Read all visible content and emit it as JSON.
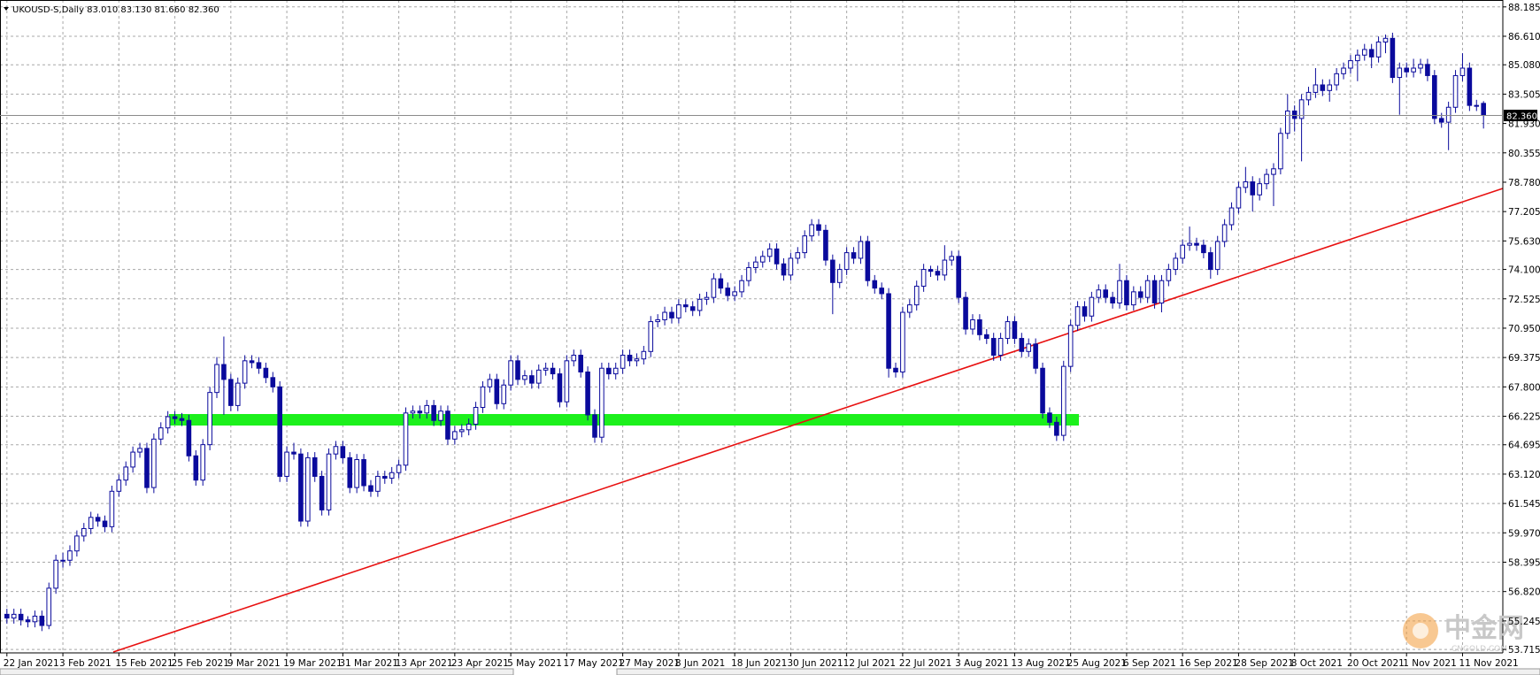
{
  "chart_data": {
    "type": "candlestick",
    "title": "UKOUSD-S,Daily  83.010 83.130 81.660 82.360",
    "color": "#0a0a9c",
    "up_fill": "#ffffff",
    "grid": true,
    "ylim": [
      53.53,
      88.555
    ],
    "yticks": [
      88.185,
      {
        "value": 86.61,
        "label": "86.610"
      },
      {
        "value": 85.08,
        "label": "85.080"
      },
      83.505,
      {
        "value": 81.93,
        "label": "81.930"
      },
      80.355,
      {
        "value": 78.78,
        "label": "78.780"
      },
      77.205,
      {
        "value": 75.63,
        "label": "75.630"
      },
      {
        "value": 74.1,
        "label": "74.100"
      },
      72.525,
      {
        "value": 70.95,
        "label": "70.950"
      },
      69.375,
      {
        "value": 67.8,
        "label": "67.800"
      },
      66.225,
      64.695,
      {
        "value": 63.12,
        "label": "63.120"
      },
      61.545,
      {
        "value": 59.97,
        "label": "59.970"
      },
      58.395,
      {
        "value": 56.82,
        "label": "56.820"
      },
      55.245,
      53.715
    ],
    "last_price": {
      "value": 82.36,
      "label": "82.360"
    },
    "watermark": "中金网",
    "watermark_sub": "CNGOLD.COM",
    "categories": [
      "22 Jan 2021",
      null,
      null,
      null,
      null,
      null,
      null,
      null,
      "3 Feb 2021",
      null,
      null,
      null,
      null,
      null,
      null,
      null,
      "15 Feb 2021",
      null,
      null,
      null,
      null,
      null,
      null,
      null,
      "25 Feb 2021",
      null,
      null,
      null,
      null,
      null,
      null,
      null,
      "9 Mar 2021",
      null,
      null,
      null,
      null,
      null,
      null,
      null,
      "19 Mar 2021",
      null,
      null,
      null,
      null,
      null,
      null,
      null,
      "31 Mar 2021",
      null,
      null,
      null,
      null,
      null,
      null,
      null,
      "13 Apr 2021",
      null,
      null,
      null,
      null,
      null,
      null,
      null,
      "23 Apr 2021",
      null,
      null,
      null,
      null,
      null,
      null,
      null,
      "5 May 2021",
      null,
      null,
      null,
      null,
      null,
      null,
      null,
      "17 May 2021",
      null,
      null,
      null,
      null,
      null,
      null,
      null,
      "27 May 2021",
      null,
      null,
      null,
      null,
      null,
      null,
      null,
      "8 Jun 2021",
      null,
      null,
      null,
      null,
      null,
      null,
      null,
      "18 Jun 2021",
      null,
      null,
      null,
      null,
      null,
      null,
      null,
      "30 Jun 2021",
      null,
      null,
      null,
      null,
      null,
      null,
      null,
      "12 Jul 2021",
      null,
      null,
      null,
      null,
      null,
      null,
      null,
      "22 Jul 2021",
      null,
      null,
      null,
      null,
      null,
      null,
      null,
      "3 Aug 2021",
      null,
      null,
      null,
      null,
      null,
      null,
      null,
      "13 Aug 2021",
      null,
      null,
      null,
      null,
      null,
      null,
      null,
      "25 Aug 2021",
      null,
      null,
      null,
      null,
      null,
      null,
      null,
      "6 Sep 2021",
      null,
      null,
      null,
      null,
      null,
      null,
      null,
      "16 Sep 2021",
      null,
      null,
      null,
      null,
      null,
      null,
      null,
      "28 Sep 2021",
      null,
      null,
      null,
      null,
      null,
      null,
      null,
      "8 Oct 2021",
      null,
      null,
      null,
      null,
      null,
      null,
      null,
      "20 Oct 2021",
      null,
      null,
      null,
      null,
      null,
      null,
      null,
      "1 Nov 2021",
      null,
      null,
      null,
      null,
      null,
      null,
      null,
      "11 Nov 2021",
      null,
      null,
      null
    ],
    "ohlc": [
      [
        55.6,
        55.9,
        55.1,
        55.4
      ],
      [
        55.4,
        55.9,
        55.1,
        55.6
      ],
      [
        55.6,
        55.9,
        55.0,
        55.3
      ],
      [
        55.3,
        55.5,
        54.9,
        55.2
      ],
      [
        55.2,
        55.8,
        54.9,
        55.5
      ],
      [
        55.5,
        55.8,
        54.7,
        55.0
      ],
      [
        55.0,
        57.3,
        54.8,
        57.0
      ],
      [
        57.0,
        58.8,
        56.7,
        58.5
      ],
      [
        58.5,
        58.9,
        58.1,
        58.5
      ],
      [
        58.5,
        59.3,
        58.2,
        59.0
      ],
      [
        59.0,
        60.1,
        58.7,
        59.8
      ],
      [
        59.8,
        60.5,
        59.5,
        60.2
      ],
      [
        60.2,
        61.1,
        59.9,
        60.8
      ],
      [
        60.8,
        61.0,
        60.3,
        60.6
      ],
      [
        60.6,
        60.9,
        60.0,
        60.3
      ],
      [
        60.3,
        62.5,
        60.0,
        62.2
      ],
      [
        62.2,
        63.1,
        61.9,
        62.8
      ],
      [
        62.8,
        63.8,
        62.5,
        63.5
      ],
      [
        63.5,
        64.6,
        63.2,
        64.3
      ],
      [
        64.3,
        64.8,
        64.0,
        64.5
      ],
      [
        64.5,
        64.8,
        62.1,
        62.4
      ],
      [
        62.4,
        65.3,
        62.1,
        65.0
      ],
      [
        65.0,
        65.9,
        64.7,
        65.6
      ],
      [
        65.6,
        66.5,
        65.3,
        66.2
      ],
      [
        66.2,
        66.5,
        65.8,
        66.1
      ],
      [
        66.1,
        66.4,
        65.7,
        66.0
      ],
      [
        66.0,
        66.3,
        63.8,
        64.1
      ],
      [
        64.1,
        64.4,
        62.5,
        62.8
      ],
      [
        62.8,
        65.0,
        62.5,
        64.7
      ],
      [
        64.7,
        67.8,
        64.4,
        67.5
      ],
      [
        67.5,
        69.4,
        67.2,
        69.0
      ],
      [
        69.0,
        70.5,
        66.3,
        68.2
      ],
      [
        68.2,
        68.5,
        66.5,
        66.8
      ],
      [
        66.8,
        68.3,
        66.5,
        68.0
      ],
      [
        68.0,
        69.5,
        67.7,
        69.2
      ],
      [
        69.2,
        69.5,
        68.8,
        69.1
      ],
      [
        69.1,
        69.4,
        68.5,
        68.8
      ],
      [
        68.8,
        69.1,
        68.0,
        68.3
      ],
      [
        68.3,
        68.6,
        67.5,
        67.8
      ],
      [
        67.8,
        68.1,
        62.7,
        63.0
      ],
      [
        63.0,
        64.6,
        62.7,
        64.3
      ],
      [
        64.3,
        64.8,
        63.9,
        64.2
      ],
      [
        64.2,
        64.5,
        60.3,
        60.6
      ],
      [
        60.6,
        64.3,
        60.3,
        64.0
      ],
      [
        64.0,
        64.3,
        62.7,
        63.0
      ],
      [
        63.0,
        63.3,
        60.9,
        61.2
      ],
      [
        61.2,
        64.5,
        60.9,
        64.2
      ],
      [
        64.2,
        64.9,
        63.9,
        64.6
      ],
      [
        64.6,
        64.9,
        63.7,
        64.0
      ],
      [
        64.0,
        64.3,
        62.1,
        62.4
      ],
      [
        62.4,
        64.2,
        62.1,
        63.9
      ],
      [
        63.9,
        64.2,
        62.2,
        62.5
      ],
      [
        62.5,
        62.8,
        61.9,
        62.2
      ],
      [
        62.2,
        63.3,
        61.9,
        63.0
      ],
      [
        63.0,
        63.3,
        62.6,
        62.9
      ],
      [
        62.9,
        63.5,
        62.6,
        63.2
      ],
      [
        63.2,
        63.9,
        62.9,
        63.6
      ],
      [
        63.6,
        66.7,
        63.3,
        66.4
      ],
      [
        66.4,
        66.8,
        66.1,
        66.5
      ],
      [
        66.5,
        66.8,
        66.1,
        66.4
      ],
      [
        66.4,
        67.1,
        66.1,
        66.8
      ],
      [
        66.8,
        67.1,
        65.7,
        66.0
      ],
      [
        66.0,
        66.8,
        65.7,
        66.5
      ],
      [
        66.5,
        66.8,
        64.7,
        65.0
      ],
      [
        65.0,
        65.7,
        64.7,
        65.4
      ],
      [
        65.4,
        65.8,
        65.1,
        65.5
      ],
      [
        65.5,
        66.1,
        65.2,
        65.8
      ],
      [
        65.8,
        67.0,
        65.5,
        66.7
      ],
      [
        66.7,
        68.1,
        66.4,
        67.8
      ],
      [
        67.8,
        68.5,
        67.5,
        68.2
      ],
      [
        68.2,
        68.5,
        66.6,
        66.9
      ],
      [
        66.9,
        68.2,
        66.6,
        67.9
      ],
      [
        67.9,
        69.5,
        67.6,
        69.2
      ],
      [
        69.2,
        69.5,
        67.9,
        68.2
      ],
      [
        68.2,
        68.7,
        67.9,
        68.4
      ],
      [
        68.4,
        68.7,
        67.7,
        68.0
      ],
      [
        68.0,
        69.0,
        67.7,
        68.7
      ],
      [
        68.7,
        69.1,
        68.4,
        68.8
      ],
      [
        68.8,
        69.1,
        68.2,
        68.5
      ],
      [
        68.5,
        68.8,
        66.7,
        67.0
      ],
      [
        67.0,
        69.5,
        66.7,
        69.2
      ],
      [
        69.2,
        69.8,
        68.9,
        69.5
      ],
      [
        69.5,
        69.8,
        68.3,
        68.6
      ],
      [
        68.6,
        68.9,
        66.0,
        66.3
      ],
      [
        66.3,
        66.6,
        64.8,
        65.1
      ],
      [
        65.1,
        69.1,
        64.8,
        68.8
      ],
      [
        68.8,
        69.1,
        68.2,
        68.5
      ],
      [
        68.5,
        69.1,
        68.2,
        68.8
      ],
      [
        68.8,
        69.8,
        68.5,
        69.5
      ],
      [
        69.5,
        69.8,
        68.9,
        69.2
      ],
      [
        69.2,
        69.6,
        68.9,
        69.3
      ],
      [
        69.3,
        70.0,
        69.0,
        69.7
      ],
      [
        69.7,
        71.6,
        69.4,
        71.3
      ],
      [
        71.3,
        71.7,
        71.0,
        71.4
      ],
      [
        71.4,
        72.1,
        71.1,
        71.8
      ],
      [
        71.8,
        72.1,
        71.2,
        71.5
      ],
      [
        71.5,
        72.5,
        71.2,
        72.2
      ],
      [
        72.2,
        72.5,
        71.8,
        72.1
      ],
      [
        72.1,
        72.4,
        71.6,
        71.9
      ],
      [
        71.9,
        72.8,
        71.6,
        72.5
      ],
      [
        72.5,
        72.9,
        72.2,
        72.6
      ],
      [
        72.6,
        73.9,
        72.3,
        73.6
      ],
      [
        73.6,
        73.9,
        72.8,
        73.1
      ],
      [
        73.1,
        73.4,
        72.4,
        72.7
      ],
      [
        72.7,
        73.2,
        72.4,
        72.9
      ],
      [
        72.9,
        73.8,
        72.6,
        73.5
      ],
      [
        73.5,
        74.5,
        73.2,
        74.2
      ],
      [
        74.2,
        74.8,
        73.9,
        74.5
      ],
      [
        74.5,
        75.1,
        74.2,
        74.8
      ],
      [
        74.8,
        75.5,
        74.5,
        75.2
      ],
      [
        75.2,
        75.5,
        74.1,
        74.4
      ],
      [
        74.4,
        74.7,
        73.5,
        73.8
      ],
      [
        73.8,
        75.0,
        73.5,
        74.7
      ],
      [
        74.7,
        75.3,
        74.4,
        75.0
      ],
      [
        75.0,
        76.2,
        74.7,
        75.9
      ],
      [
        75.9,
        76.8,
        75.6,
        76.5
      ],
      [
        76.5,
        76.8,
        75.9,
        76.2
      ],
      [
        76.2,
        76.5,
        74.3,
        74.6
      ],
      [
        74.6,
        74.9,
        71.7,
        73.4
      ],
      [
        73.4,
        74.4,
        73.1,
        74.1
      ],
      [
        74.1,
        75.3,
        73.8,
        75.0
      ],
      [
        75.0,
        75.3,
        74.4,
        74.7
      ],
      [
        74.7,
        75.9,
        74.4,
        75.6
      ],
      [
        75.6,
        75.9,
        73.2,
        73.5
      ],
      [
        73.5,
        73.8,
        72.8,
        73.1
      ],
      [
        73.1,
        73.4,
        72.5,
        72.8
      ],
      [
        72.8,
        73.1,
        68.3,
        68.8
      ],
      [
        68.8,
        69.1,
        68.3,
        68.6
      ],
      [
        68.6,
        72.1,
        68.3,
        71.8
      ],
      [
        71.8,
        72.5,
        71.5,
        72.2
      ],
      [
        72.2,
        73.5,
        71.9,
        73.2
      ],
      [
        73.2,
        74.4,
        72.9,
        74.1
      ],
      [
        74.1,
        74.3,
        73.7,
        74.0
      ],
      [
        74.0,
        74.3,
        73.5,
        73.8
      ],
      [
        73.8,
        75.4,
        73.5,
        74.6
      ],
      [
        74.6,
        75.1,
        74.3,
        74.8
      ],
      [
        74.8,
        75.1,
        72.3,
        72.6
      ],
      [
        72.6,
        72.9,
        70.6,
        70.9
      ],
      [
        70.9,
        71.7,
        70.6,
        71.4
      ],
      [
        71.4,
        71.7,
        70.3,
        70.6
      ],
      [
        70.6,
        70.9,
        70.1,
        70.4
      ],
      [
        70.4,
        70.7,
        69.2,
        69.5
      ],
      [
        69.5,
        70.7,
        69.2,
        70.4
      ],
      [
        70.4,
        71.6,
        70.1,
        71.3
      ],
      [
        71.3,
        71.6,
        70.1,
        70.4
      ],
      [
        70.4,
        70.7,
        69.4,
        69.7
      ],
      [
        69.7,
        70.4,
        69.4,
        70.1
      ],
      [
        70.1,
        70.4,
        68.5,
        68.8
      ],
      [
        68.8,
        69.1,
        66.1,
        66.4
      ],
      [
        66.4,
        66.7,
        65.6,
        65.9
      ],
      [
        65.9,
        66.2,
        64.9,
        65.2
      ],
      [
        65.2,
        69.2,
        64.9,
        68.9
      ],
      [
        68.9,
        71.4,
        68.6,
        71.1
      ],
      [
        71.1,
        72.4,
        70.8,
        72.1
      ],
      [
        72.1,
        72.4,
        71.3,
        71.6
      ],
      [
        71.6,
        72.9,
        71.3,
        72.6
      ],
      [
        72.6,
        73.3,
        72.3,
        73.0
      ],
      [
        73.0,
        73.3,
        72.3,
        72.6
      ],
      [
        72.6,
        72.9,
        72.0,
        72.3
      ],
      [
        72.3,
        74.4,
        72.0,
        73.5
      ],
      [
        73.5,
        73.8,
        71.9,
        72.2
      ],
      [
        72.2,
        73.2,
        71.9,
        72.9
      ],
      [
        72.9,
        73.2,
        72.3,
        72.6
      ],
      [
        72.6,
        73.8,
        72.3,
        73.5
      ],
      [
        73.5,
        73.8,
        72.0,
        72.3
      ],
      [
        72.3,
        73.8,
        71.8,
        73.5
      ],
      [
        73.5,
        74.4,
        73.2,
        74.1
      ],
      [
        74.1,
        75.0,
        73.8,
        74.7
      ],
      [
        74.7,
        75.7,
        74.4,
        75.4
      ],
      [
        75.4,
        76.4,
        75.1,
        75.5
      ],
      [
        75.5,
        75.8,
        75.1,
        75.4
      ],
      [
        75.4,
        75.7,
        74.7,
        75.0
      ],
      [
        75.0,
        75.3,
        73.6,
        74.1
      ],
      [
        74.1,
        75.9,
        73.8,
        75.6
      ],
      [
        75.6,
        76.8,
        75.3,
        76.5
      ],
      [
        76.5,
        77.7,
        76.2,
        77.4
      ],
      [
        77.4,
        78.8,
        77.1,
        78.5
      ],
      [
        78.5,
        79.6,
        78.2,
        78.8
      ],
      [
        78.8,
        79.1,
        77.2,
        78.1
      ],
      [
        78.1,
        79.0,
        77.8,
        78.7
      ],
      [
        78.7,
        79.5,
        78.4,
        79.2
      ],
      [
        79.2,
        79.8,
        77.5,
        79.5
      ],
      [
        79.5,
        81.7,
        79.2,
        81.4
      ],
      [
        81.4,
        83.5,
        81.1,
        82.6
      ],
      [
        82.6,
        82.9,
        81.5,
        82.2
      ],
      [
        82.2,
        83.5,
        79.9,
        83.2
      ],
      [
        83.2,
        83.9,
        82.9,
        83.6
      ],
      [
        83.6,
        84.9,
        83.3,
        84.0
      ],
      [
        84.0,
        84.3,
        83.4,
        83.7
      ],
      [
        83.7,
        84.3,
        83.1,
        84.0
      ],
      [
        84.0,
        84.9,
        83.7,
        84.6
      ],
      [
        84.6,
        85.2,
        84.3,
        84.9
      ],
      [
        84.9,
        85.6,
        84.6,
        85.3
      ],
      [
        85.3,
        85.9,
        84.2,
        85.6
      ],
      [
        85.6,
        86.2,
        85.3,
        85.9
      ],
      [
        85.9,
        86.2,
        84.9,
        85.5
      ],
      [
        85.5,
        86.6,
        85.2,
        86.3
      ],
      [
        86.3,
        86.7,
        85.7,
        86.5
      ],
      [
        86.5,
        86.8,
        84.1,
        84.4
      ],
      [
        84.4,
        85.2,
        82.4,
        84.9
      ],
      [
        84.9,
        85.2,
        84.4,
        84.7
      ],
      [
        84.7,
        85.4,
        84.4,
        84.9
      ],
      [
        84.9,
        85.4,
        84.6,
        85.1
      ],
      [
        85.1,
        85.4,
        84.2,
        84.5
      ],
      [
        84.5,
        84.8,
        81.9,
        82.2
      ],
      [
        82.2,
        82.5,
        81.7,
        82.0
      ],
      [
        82.0,
        83.1,
        80.5,
        82.8
      ],
      [
        82.8,
        84.8,
        82.5,
        84.5
      ],
      [
        84.5,
        85.7,
        84.2,
        84.9
      ],
      [
        84.9,
        85.2,
        82.6,
        82.9
      ],
      [
        82.9,
        83.2,
        82.6,
        82.9
      ],
      [
        83.01,
        83.13,
        81.66,
        82.36
      ]
    ]
  }
}
